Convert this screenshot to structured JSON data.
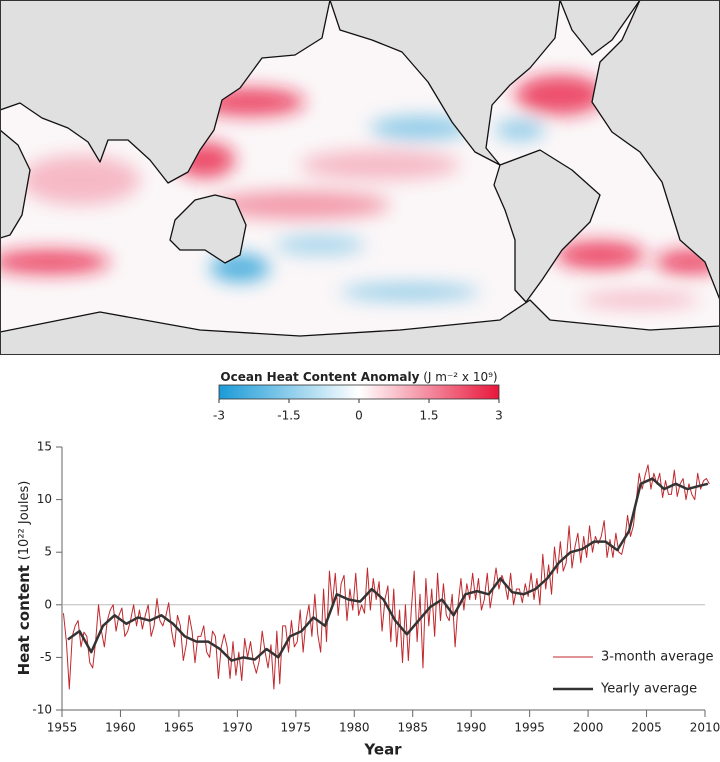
{
  "chart_data": [
    {
      "type": "colorbar",
      "title": "Ocean Heat Content Anomaly",
      "units": "(J m⁻² x 10⁹)",
      "colors": [
        "#1a9bd7",
        "#ffffff",
        "#e8163c"
      ],
      "xlim": [
        -3,
        3
      ],
      "xticks": [
        -3,
        -1.5,
        0,
        1.5,
        3
      ]
    },
    {
      "type": "line",
      "xlabel": "Year",
      "ylabel": "Heat content",
      "ylabel_units": "(10²² Joules)",
      "xlim": [
        1955,
        2010
      ],
      "ylim": [
        -10,
        15
      ],
      "xticks": [
        1955,
        1960,
        1965,
        1970,
        1975,
        1980,
        1985,
        1990,
        1995,
        2000,
        2005,
        2010
      ],
      "yticks": [
        -10,
        -5,
        0,
        5,
        10,
        15
      ],
      "zero_line": true,
      "legend": "lower right",
      "series": [
        {
          "name": "3-month average",
          "color": "#c0282d",
          "x": [
            1955.125,
            1955.375,
            1955.625,
            1955.875,
            1956.125,
            1956.375,
            1956.625,
            1956.875,
            1957.125,
            1957.375,
            1957.625,
            1957.875,
            1958.125,
            1958.375,
            1958.625,
            1958.875,
            1959.125,
            1959.375,
            1959.625,
            1959.875,
            1960.125,
            1960.375,
            1960.625,
            1960.875,
            1961.125,
            1961.375,
            1961.625,
            1961.875,
            1962.125,
            1962.375,
            1962.625,
            1962.875,
            1963.125,
            1963.375,
            1963.625,
            1963.875,
            1964.125,
            1964.375,
            1964.625,
            1964.875,
            1965.125,
            1965.375,
            1965.625,
            1965.875,
            1966.125,
            1966.375,
            1966.625,
            1966.875,
            1967.125,
            1967.375,
            1967.625,
            1967.875,
            1968.125,
            1968.375,
            1968.625,
            1968.875,
            1969.125,
            1969.375,
            1969.625,
            1969.875,
            1970.125,
            1970.375,
            1970.625,
            1970.875,
            1971.125,
            1971.375,
            1971.625,
            1971.875,
            1972.125,
            1972.375,
            1972.625,
            1972.875,
            1973.125,
            1973.375,
            1973.625,
            1973.875,
            1974.125,
            1974.375,
            1974.625,
            1974.875,
            1975.125,
            1975.375,
            1975.625,
            1975.875,
            1976.125,
            1976.375,
            1976.625,
            1976.875,
            1977.125,
            1977.375,
            1977.625,
            1977.875,
            1978.125,
            1978.375,
            1978.625,
            1978.875,
            1979.125,
            1979.375,
            1979.625,
            1979.875,
            1980.125,
            1980.375,
            1980.625,
            1980.875,
            1981.125,
            1981.375,
            1981.625,
            1981.875,
            1982.125,
            1982.375,
            1982.625,
            1982.875,
            1983.125,
            1983.375,
            1983.625,
            1983.875,
            1984.125,
            1984.375,
            1984.625,
            1984.875,
            1985.125,
            1985.375,
            1985.625,
            1985.875,
            1986.125,
            1986.375,
            1986.625,
            1986.875,
            1987.125,
            1987.375,
            1987.625,
            1987.875,
            1988.125,
            1988.375,
            1988.625,
            1988.875,
            1989.125,
            1989.375,
            1989.625,
            1989.875,
            1990.125,
            1990.375,
            1990.625,
            1990.875,
            1991.125,
            1991.375,
            1991.625,
            1991.875,
            1992.125,
            1992.375,
            1992.625,
            1992.875,
            1993.125,
            1993.375,
            1993.625,
            1993.875,
            1994.125,
            1994.375,
            1994.625,
            1994.875,
            1995.125,
            1995.375,
            1995.625,
            1995.875,
            1996.125,
            1996.375,
            1996.625,
            1996.875,
            1997.125,
            1997.375,
            1997.625,
            1997.875,
            1998.125,
            1998.375,
            1998.625,
            1998.875,
            1999.125,
            1999.375,
            1999.625,
            1999.875,
            2000.125,
            2000.375,
            2000.625,
            2000.875,
            2001.125,
            2001.375,
            2001.625,
            2001.875,
            2002.125,
            2002.375,
            2002.625,
            2002.875,
            2003.125,
            2003.375,
            2003.625,
            2003.875,
            2004.125,
            2004.375,
            2004.625,
            2004.875,
            2005.125,
            2005.375,
            2005.625,
            2005.875,
            2006.125,
            2006.375,
            2006.625,
            2006.875,
            2007.125,
            2007.375,
            2007.625,
            2007.875,
            2008.125,
            2008.375,
            2008.625,
            2008.875,
            2009.125,
            2009.375,
            2009.625,
            2009.875,
            2010.125,
            2010.375
          ],
          "values": [
            -0.8,
            -3.5,
            -8,
            -3,
            -2,
            -1.5,
            -4,
            -2.6,
            -3,
            -5.5,
            -6,
            -3.5,
            0,
            -2.5,
            -4,
            -1.5,
            -0.5,
            0,
            -2.5,
            -1,
            -0.3,
            -3,
            -2.5,
            -1.4,
            0,
            -2,
            -0.5,
            -2.3,
            -1,
            0,
            -3,
            -2,
            0.6,
            -1.5,
            -2,
            -1.1,
            0.2,
            -2.5,
            -4,
            -1,
            -2,
            -5.3,
            -3.8,
            -1,
            -2.5,
            -5.5,
            -3,
            -3,
            -2,
            -4.5,
            -5,
            -2.5,
            -3,
            -7,
            -4,
            -2.8,
            -4,
            -7,
            -3.5,
            -6.7,
            -4.5,
            -7.2,
            -3.2,
            -5,
            -3.5,
            -5.5,
            -6.5,
            -5.3,
            -2.5,
            -4.5,
            -6,
            -3.8,
            -8,
            -2.5,
            -7.5,
            -2,
            -2,
            -4.5,
            -1.5,
            -4,
            -3.5,
            -0.5,
            -4.5,
            -1.5,
            0,
            -3,
            1,
            -2.8,
            -4.5,
            1.5,
            -3.5,
            3.2,
            0,
            3,
            -1,
            2,
            2.8,
            -1.5,
            1.5,
            -0.5,
            3,
            -1,
            0,
            -0.8,
            3.5,
            -0.5,
            2.5,
            0.5,
            2.2,
            -2.5,
            0.5,
            1.8,
            -3.5,
            1.5,
            -4,
            -0.5,
            -5.5,
            0,
            -5.3,
            -0.5,
            3.2,
            -3.5,
            1,
            -6,
            2.5,
            -2,
            1.5,
            -3,
            3,
            -1.5,
            2,
            -1,
            -1.5,
            1,
            -4,
            0,
            2.5,
            -0.5,
            2,
            0.5,
            3,
            0.5,
            2.5,
            -0.5,
            0.5,
            3,
            -0.3,
            1.5,
            3.5,
            1.5,
            2.8,
            2,
            0.5,
            3,
            0,
            1.5,
            1.5,
            0.2,
            2,
            0.8,
            3,
            0.5,
            2.5,
            0,
            4.8,
            1.5,
            3.8,
            1,
            5.5,
            3,
            6,
            3.2,
            4,
            7.5,
            3.5,
            5.5,
            6.8,
            4,
            6.5,
            4.5,
            7.5,
            5,
            6.5,
            5.8,
            6.5,
            8,
            4.5,
            6.2,
            4.5,
            6.8,
            5,
            4.8,
            6,
            8.5,
            6.5,
            7.5,
            10,
            12.5,
            11,
            12.3,
            13.3,
            11,
            12.5,
            11.5,
            12.5,
            10.2,
            11.8,
            10.5,
            10.5,
            12.8,
            10.3,
            11.5,
            12,
            10,
            11.5,
            10.5,
            10,
            12.5,
            11,
            11.8,
            12,
            11.5
          ]
        },
        {
          "name": "Yearly average",
          "color": "#333333",
          "x": [
            1955.5,
            1956.5,
            1957.5,
            1958.5,
            1959.5,
            1960.5,
            1961.5,
            1962.5,
            1963.5,
            1964.5,
            1965.5,
            1966.5,
            1967.5,
            1968.5,
            1969.5,
            1970.5,
            1971.5,
            1972.5,
            1973.5,
            1974.5,
            1975.5,
            1976.5,
            1977.5,
            1978.5,
            1979.5,
            1980.5,
            1981.5,
            1982.5,
            1983.5,
            1984.5,
            1985.5,
            1986.5,
            1987.5,
            1988.5,
            1989.5,
            1990.5,
            1991.5,
            1992.5,
            1993.5,
            1994.5,
            1995.5,
            1996.5,
            1997.5,
            1998.5,
            1999.5,
            2000.5,
            2001.5,
            2002.5,
            2003.5,
            2004.5,
            2005.5,
            2006.5,
            2007.5,
            2008.5,
            2009.5,
            2010.25
          ],
          "values": [
            -3.3,
            -2.5,
            -4.5,
            -2,
            -1,
            -1.8,
            -1.2,
            -1.5,
            -1,
            -1.8,
            -3,
            -3.5,
            -3.5,
            -4.2,
            -5.3,
            -5,
            -5.2,
            -4.2,
            -5,
            -3,
            -2.5,
            -1.2,
            -2,
            1,
            0.5,
            0.3,
            1.5,
            0.5,
            -1.5,
            -2.8,
            -1.5,
            -0.2,
            0.5,
            -1,
            1,
            1.3,
            1,
            2.5,
            1.2,
            1,
            1.5,
            2.5,
            4,
            5,
            5.3,
            6,
            6,
            5.2,
            7,
            11.5,
            12,
            11,
            11.5,
            11,
            11.3,
            11.5
          ]
        }
      ]
    }
  ]
}
